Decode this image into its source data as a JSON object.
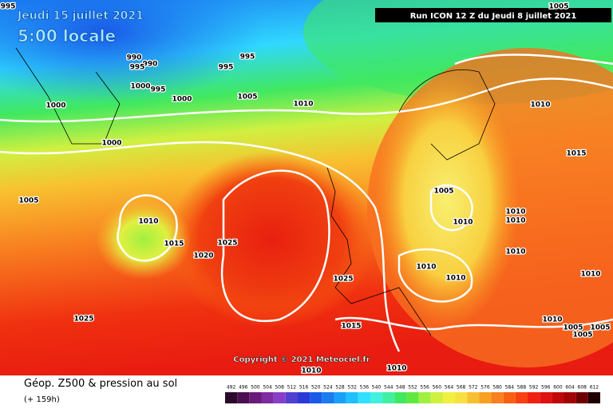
{
  "header": {
    "date": "Jeudi 15 juillet 2021",
    "time": "5:00 locale",
    "run": "Run ICON 12 Z du Jeudi 8 juillet 2021",
    "copyright": "Copyright © 2021 Meteociel.fr"
  },
  "footer": {
    "title": "Géop. Z500 & pression au sol",
    "subtitle": "(+ 159h)"
  },
  "legend": {
    "values": [
      492,
      496,
      500,
      504,
      508,
      512,
      516,
      520,
      524,
      528,
      532,
      536,
      540,
      544,
      548,
      552,
      556,
      560,
      564,
      568,
      572,
      576,
      580,
      584,
      588,
      592,
      596,
      600,
      604,
      608,
      612
    ],
    "colors": [
      "#2a0a2a",
      "#4b0f4f",
      "#6a1a7a",
      "#7e2aa0",
      "#8a3ec8",
      "#5040d0",
      "#2a3ad8",
      "#1a5ae8",
      "#1a7af0",
      "#1aa0f8",
      "#20c0ff",
      "#30e0ff",
      "#40f0e0",
      "#40f0a0",
      "#40e860",
      "#60e840",
      "#a0f040",
      "#d0f040",
      "#f0f040",
      "#f8e040",
      "#f8c030",
      "#f8a020",
      "#f88020",
      "#f86010",
      "#f84010",
      "#f02010",
      "#e01010",
      "#c00808",
      "#a00404",
      "#700000",
      "#200000"
    ]
  },
  "isobars": [
    "995",
    "990",
    "990",
    "995",
    "995",
    "995",
    "1000",
    "995",
    "1000",
    "1005",
    "1010",
    "1000",
    "1000",
    "1005",
    "1010",
    "1015",
    "1025",
    "1020",
    "1025",
    "1025",
    "1015",
    "1010",
    "1010",
    "1015",
    "1005",
    "1010",
    "1010",
    "1010",
    "1010",
    "1010",
    "1010",
    "1010",
    "1010",
    "1005",
    "1005",
    "1005",
    "1005",
    "1010"
  ]
}
